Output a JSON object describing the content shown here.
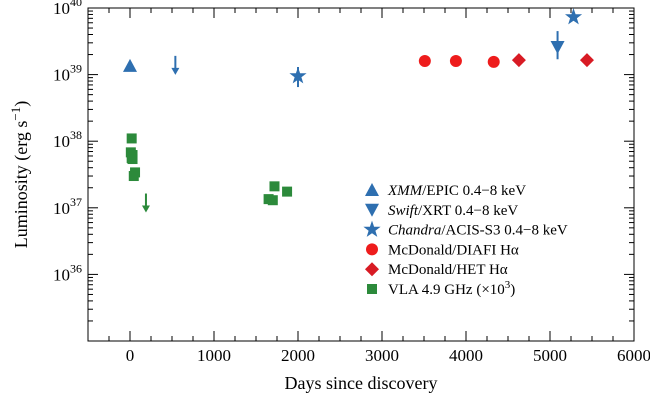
{
  "chart_data": {
    "type": "scatter",
    "title": "",
    "xlabel": "Days since discovery",
    "ylabel_main": "Luminosity (erg s",
    "ylabel_sup": "−1",
    "ylabel_close": ")",
    "xlim": [
      -500,
      6000
    ],
    "ylim": [
      1e+35,
      1e+40
    ],
    "yscale": "log",
    "grid": false,
    "legend_position": "lower-right",
    "x_ticks": [
      0,
      1000,
      2000,
      3000,
      4000,
      5000,
      6000
    ],
    "x_tick_labels": [
      "0",
      "1000",
      "2000",
      "3000",
      "4000",
      "5000",
      "6000"
    ],
    "y_ticks": [
      36,
      37,
      38,
      39,
      40
    ],
    "y_tick_base": "10",
    "y_tick_exponents": [
      "36",
      "37",
      "38",
      "39",
      "40"
    ],
    "series": [
      {
        "key": "xmm",
        "color": "#2e6fb0",
        "marker": "triangle-up",
        "legend_italic": "XMM",
        "legend_rest": "/EPIC 0.4−8 keV",
        "points": [
          {
            "x": 0,
            "y": 1.35e+39
          }
        ]
      },
      {
        "key": "swift",
        "color": "#2e6fb0",
        "marker": "triangle-down",
        "legend_italic": "Swift",
        "legend_rest": "/XRT 0.4−8 keV",
        "points": [
          {
            "x": 5090,
            "y": 2.6e+39
          }
        ],
        "upper_limits": [
          {
            "x": 540,
            "y": 1.4e+39
          }
        ]
      },
      {
        "key": "chandra",
        "color": "#2e6fb0",
        "marker": "star",
        "legend_italic": "Chandra",
        "legend_rest": "/ACIS-S3 0.4−8 keV",
        "points": [
          {
            "x": 2000,
            "y": 9.5e+38
          },
          {
            "x": 5280,
            "y": 7.3e+39
          }
        ],
        "error_bars": [
          {
            "x": 2000,
            "y_low": 6.5e+38,
            "y_high": 1.3e+39
          },
          {
            "x": 5090,
            "y_low": 1.7e+39,
            "y_high": 4.5e+39
          }
        ]
      },
      {
        "key": "diafi",
        "color": "#ee1c1c",
        "marker": "circle",
        "legend_italic": "",
        "legend_rest": "McDonald/DIAFI Hα",
        "points": [
          {
            "x": 3510,
            "y": 1.6e+39
          },
          {
            "x": 3880,
            "y": 1.6e+39
          },
          {
            "x": 4330,
            "y": 1.55e+39
          }
        ]
      },
      {
        "key": "het",
        "color": "#d81b24",
        "marker": "diamond",
        "legend_italic": "",
        "legend_rest": "McDonald/HET Hα",
        "points": [
          {
            "x": 4630,
            "y": 1.65e+39
          },
          {
            "x": 5440,
            "y": 1.65e+39
          }
        ]
      },
      {
        "key": "vla",
        "color": "#2c8a3b",
        "marker": "square",
        "legend_italic": "",
        "legend_rest": "VLA 4.9 GHz (×10",
        "legend_sup": "3",
        "legend_close": ")",
        "points": [
          {
            "x": 20,
            "y": 1.1e+38
          },
          {
            "x": 10,
            "y": 6.8e+37
          },
          {
            "x": 30,
            "y": 6.2e+37
          },
          {
            "x": 20,
            "y": 5.6e+37
          },
          {
            "x": 30,
            "y": 5.4e+37
          },
          {
            "x": 60,
            "y": 3.4e+37
          },
          {
            "x": 45,
            "y": 3e+37
          },
          {
            "x": 1650,
            "y": 1.35e+37
          },
          {
            "x": 1700,
            "y": 1.3e+37
          },
          {
            "x": 1720,
            "y": 2.1e+37
          },
          {
            "x": 1870,
            "y": 1.75e+37
          }
        ],
        "upper_limits": [
          {
            "x": 190,
            "y": 1.2e+37
          }
        ]
      }
    ]
  }
}
